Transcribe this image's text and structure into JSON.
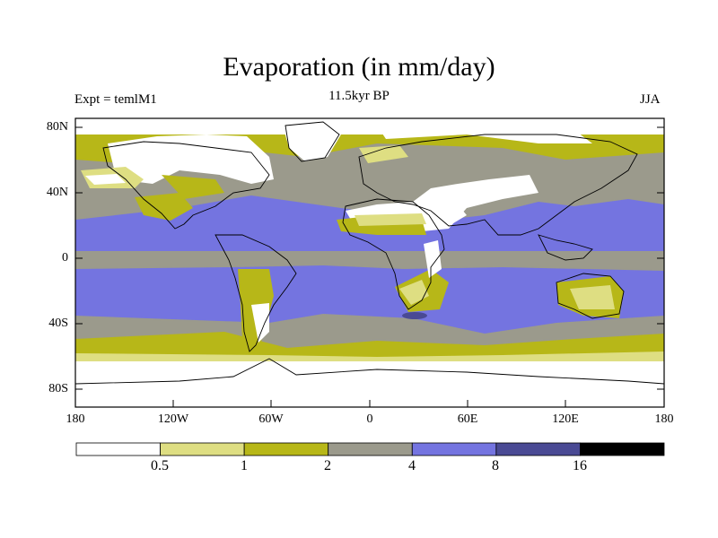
{
  "title": "Evaporation (in mm/day)",
  "subtitle": "11.5kyr BP",
  "left_label": "Expt = temlM1",
  "right_label": "JJA",
  "y_ticks": [
    "80N",
    "40N",
    "0",
    "40S",
    "80S"
  ],
  "x_ticks": [
    "180",
    "120W",
    "60W",
    "0",
    "60E",
    "120E",
    "180"
  ],
  "colorbar": {
    "labels": [
      "0.5",
      "1",
      "2",
      "4",
      "8",
      "16"
    ],
    "colors": [
      "#ffffff",
      "#dede82",
      "#b7b718",
      "#9b9a8c",
      "#7474e0",
      "#4a4a94",
      "#000000"
    ]
  },
  "colors": {
    "ocean_tropical": "#7474e0",
    "ocean_mid": "#9b9a8c",
    "high_lat": "#b7b718",
    "pale": "#dede82",
    "dry": "#ffffff",
    "strong": "#4a4a94"
  }
}
